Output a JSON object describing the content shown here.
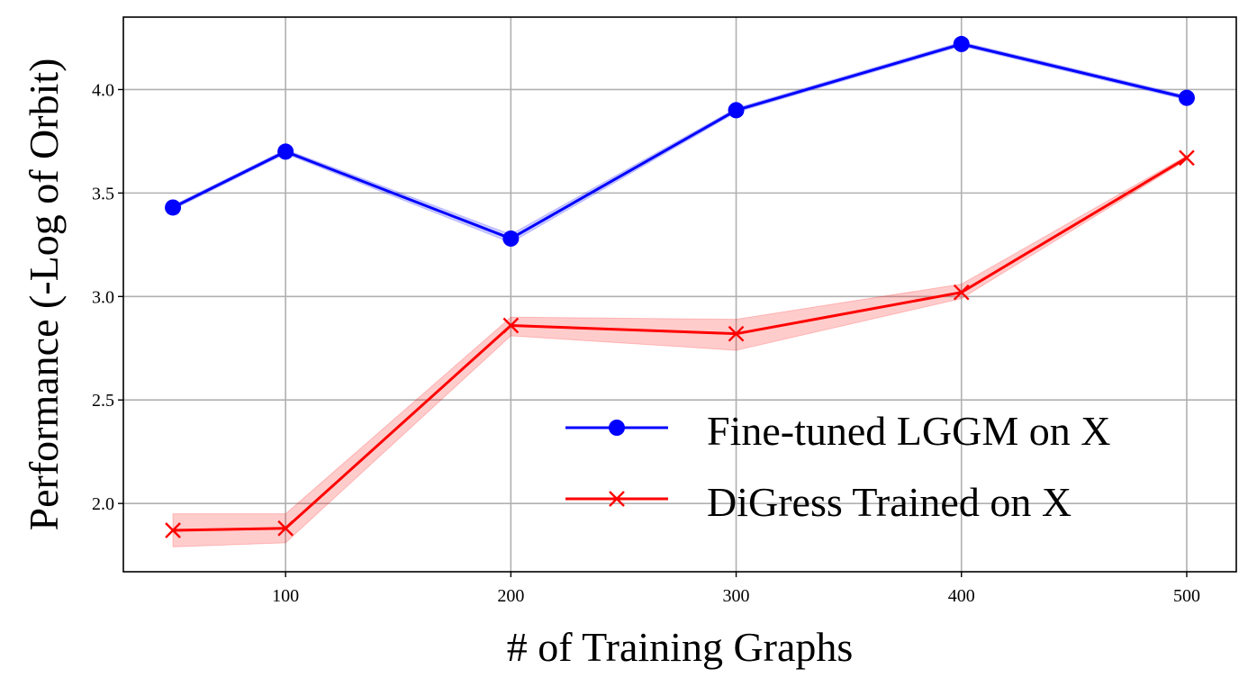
{
  "chart_data": {
    "type": "line",
    "title": "",
    "xlabel": "# of Training Graphs",
    "ylabel": "Performance (-Log of Orbit)",
    "xlim": [
      28,
      522
    ],
    "ylim": [
      1.67,
      4.35
    ],
    "xticks": [
      100,
      200,
      300,
      400,
      500
    ],
    "yticks": [
      2.0,
      2.5,
      3.0,
      3.5,
      4.0
    ],
    "xtick_labels": [
      "100",
      "200",
      "300",
      "400",
      "500"
    ],
    "ytick_labels": [
      "2.0",
      "2.5",
      "3.0",
      "3.5",
      "4.0"
    ],
    "grid": true,
    "legend_position": "lower-right",
    "x": [
      50,
      100,
      200,
      300,
      400,
      500
    ],
    "series": [
      {
        "name": "Fine-tuned LGGM on X",
        "color": "#0000ff",
        "marker": "circle",
        "values": [
          3.43,
          3.7,
          3.28,
          3.9,
          4.22,
          3.96
        ],
        "band_lower": [
          3.42,
          3.69,
          3.26,
          3.89,
          4.21,
          3.95
        ],
        "band_upper": [
          3.44,
          3.71,
          3.3,
          3.91,
          4.23,
          3.97
        ]
      },
      {
        "name": "DiGress Trained on X",
        "color": "#ff0000",
        "marker": "x",
        "values": [
          1.87,
          1.88,
          2.86,
          2.82,
          3.02,
          3.67
        ],
        "band_lower": [
          1.79,
          1.81,
          2.81,
          2.74,
          2.99,
          3.66
        ],
        "band_upper": [
          1.95,
          1.95,
          2.9,
          2.89,
          3.06,
          3.68
        ]
      }
    ]
  }
}
